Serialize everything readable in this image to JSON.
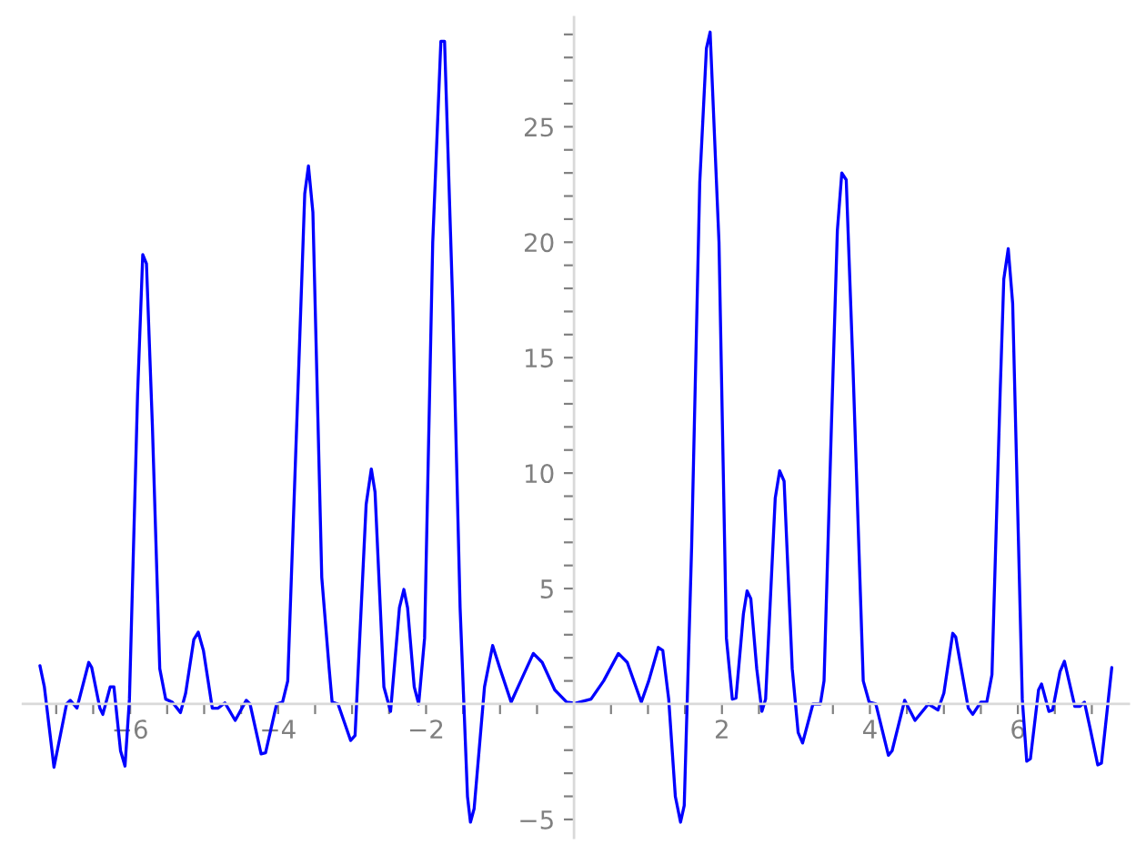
{
  "chart_data": {
    "type": "line",
    "xlim": [
      -7.45,
      7.5
    ],
    "ylim": [
      -5.8,
      29.75
    ],
    "xticks": [
      {
        "value": -7,
        "label": null
      },
      {
        "value": -6.5,
        "label": null
      },
      {
        "value": -6,
        "label": "−6"
      },
      {
        "value": -5.5,
        "label": null
      },
      {
        "value": -5,
        "label": null
      },
      {
        "value": -4.5,
        "label": null
      },
      {
        "value": -4,
        "label": "−4"
      },
      {
        "value": -3.5,
        "label": null
      },
      {
        "value": -3,
        "label": null
      },
      {
        "value": -2.5,
        "label": null
      },
      {
        "value": -2,
        "label": "−2"
      },
      {
        "value": -1.5,
        "label": null
      },
      {
        "value": -1,
        "label": null
      },
      {
        "value": -0.5,
        "label": null
      },
      {
        "value": 0.5,
        "label": null
      },
      {
        "value": 1,
        "label": null
      },
      {
        "value": 1.5,
        "label": null
      },
      {
        "value": 2,
        "label": "2"
      },
      {
        "value": 2.5,
        "label": null
      },
      {
        "value": 3,
        "label": null
      },
      {
        "value": 3.5,
        "label": null
      },
      {
        "value": 4,
        "label": "4"
      },
      {
        "value": 4.5,
        "label": null
      },
      {
        "value": 5,
        "label": null
      },
      {
        "value": 5.5,
        "label": null
      },
      {
        "value": 6,
        "label": "6"
      },
      {
        "value": 6.5,
        "label": null
      },
      {
        "value": 7,
        "label": null
      }
    ],
    "yticks": [
      {
        "value": -5,
        "label": "−5"
      },
      {
        "value": -4,
        "label": null
      },
      {
        "value": -3,
        "label": null
      },
      {
        "value": -2,
        "label": null
      },
      {
        "value": -1,
        "label": null
      },
      {
        "value": 1,
        "label": null
      },
      {
        "value": 2,
        "label": null
      },
      {
        "value": 3,
        "label": null
      },
      {
        "value": 4,
        "label": null
      },
      5,
      {
        "value": 6,
        "label": null
      },
      {
        "value": 7,
        "label": null
      },
      {
        "value": 8,
        "label": null
      },
      {
        "value": 9,
        "label": null
      },
      10,
      {
        "value": 11,
        "label": null
      },
      {
        "value": 12,
        "label": null
      },
      {
        "value": 13,
        "label": null
      },
      {
        "value": 14,
        "label": null
      },
      15,
      {
        "value": 16,
        "label": null
      },
      {
        "value": 17,
        "label": null
      },
      {
        "value": 18,
        "label": null
      },
      {
        "value": 19,
        "label": null
      },
      20,
      {
        "value": 21,
        "label": null
      },
      {
        "value": 22,
        "label": null
      },
      {
        "value": 23,
        "label": null
      },
      {
        "value": 24,
        "label": null
      },
      25,
      {
        "value": 26,
        "label": null
      },
      {
        "value": 27,
        "label": null
      },
      {
        "value": 28,
        "label": null
      },
      {
        "value": 29,
        "label": null
      }
    ],
    "grid": false,
    "marker": "none",
    "line_style": "solid",
    "series": [
      {
        "color": "#0000ff",
        "x": [
          -7.22,
          -7.16,
          -7.03,
          -6.86,
          -6.81,
          -6.72,
          -6.56,
          -6.52,
          -6.41,
          -6.37,
          -6.27,
          -6.22,
          -6.13,
          -6.07,
          -6.01,
          -5.9,
          -5.83,
          -5.78,
          -5.7,
          -5.6,
          -5.52,
          -5.43,
          -5.32,
          -5.25,
          -5.14,
          -5.08,
          -5.01,
          -4.89,
          -4.81,
          -4.72,
          -4.58,
          -4.43,
          -4.38,
          -4.23,
          -4.17,
          -4.02,
          -3.94,
          -3.87,
          -3.72,
          -3.64,
          -3.59,
          -3.53,
          -3.41,
          -3.31,
          -3.27,
          -3.19,
          -3.02,
          -2.96,
          -2.81,
          -2.74,
          -2.69,
          -2.57,
          -2.48,
          -2.36,
          -2.3,
          -2.25,
          -2.16,
          -2.1,
          -2.02,
          -1.91,
          -1.8,
          -1.75,
          -1.64,
          -1.54,
          -1.44,
          -1.4,
          -1.35,
          -1.21,
          -1.1,
          -1.0,
          -0.85,
          -0.72,
          -0.55,
          -0.43,
          -0.26,
          -0.1,
          0.02,
          0.23,
          0.4,
          0.6,
          0.72,
          0.91,
          1.01,
          1.14,
          1.2,
          1.28,
          1.37,
          1.44,
          1.49,
          1.59,
          1.7,
          1.79,
          1.84,
          1.96,
          2.06,
          2.14,
          2.19,
          2.29,
          2.34,
          2.39,
          2.47,
          2.54,
          2.59,
          2.72,
          2.78,
          2.84,
          2.95,
          3.03,
          3.09,
          3.23,
          3.33,
          3.38,
          3.48,
          3.56,
          3.62,
          3.68,
          3.77,
          3.91,
          3.99,
          4.08,
          4.25,
          4.3,
          4.47,
          4.61,
          4.79,
          4.92,
          5.0,
          5.12,
          5.16,
          5.33,
          5.39,
          5.5,
          5.58,
          5.65,
          5.76,
          5.81,
          5.87,
          5.93,
          6.06,
          6.12,
          6.17,
          6.28,
          6.32,
          6.42,
          6.47,
          6.57,
          6.63,
          6.77,
          6.84,
          6.9,
          6.98,
          7.08,
          7.13,
          7.27
        ],
        "values": [
          1.66,
          0.74,
          -2.74,
          0,
          0.16,
          -0.18,
          1.8,
          1.58,
          -0.18,
          -0.45,
          0.74,
          0.74,
          -2.03,
          -2.69,
          0.21,
          13.4,
          19.46,
          19.07,
          12.08,
          1.53,
          0.21,
          0.08,
          -0.37,
          0.47,
          2.79,
          3.11,
          2.32,
          -0.18,
          -0.18,
          0.05,
          -0.71,
          0.16,
          0,
          -2.16,
          -2.11,
          0,
          0.08,
          1.0,
          14.7,
          22.1,
          23.3,
          21.3,
          5.48,
          1.53,
          0.08,
          0,
          -1.58,
          -1.37,
          8.65,
          10.18,
          9.18,
          0.74,
          -0.32,
          4.17,
          4.96,
          4.17,
          0.74,
          0,
          2.85,
          19.99,
          28.7,
          28.7,
          17.35,
          4.17,
          -4.01,
          -5.12,
          -4.53,
          0.74,
          2.53,
          1.53,
          0.08,
          1.0,
          2.19,
          1.8,
          0.61,
          0.08,
          0.03,
          0.21,
          1.0,
          2.19,
          1.8,
          0.08,
          1.0,
          2.45,
          2.32,
          0.21,
          -4.01,
          -5.12,
          -4.4,
          6.8,
          22.6,
          28.4,
          29.1,
          19.99,
          2.85,
          0.21,
          0.26,
          3.9,
          4.9,
          4.56,
          1.53,
          -0.32,
          0.21,
          8.91,
          10.1,
          9.65,
          1.53,
          -1.24,
          -1.69,
          0,
          0,
          1.0,
          12.08,
          20.5,
          23.0,
          22.7,
          14.7,
          1.0,
          0.08,
          0,
          -2.22,
          -2.03,
          0.16,
          -0.71,
          0,
          -0.26,
          0.47,
          3.06,
          2.9,
          -0.18,
          -0.45,
          0.08,
          0.08,
          1.27,
          13.4,
          18.4,
          19.72,
          17.35,
          0.21,
          -2.48,
          -2.37,
          0.61,
          0.87,
          -0.32,
          -0.26,
          1.4,
          1.85,
          -0.1,
          -0.1,
          0.08,
          -1.1,
          -2.64,
          -2.56,
          1.58
        ]
      }
    ]
  }
}
